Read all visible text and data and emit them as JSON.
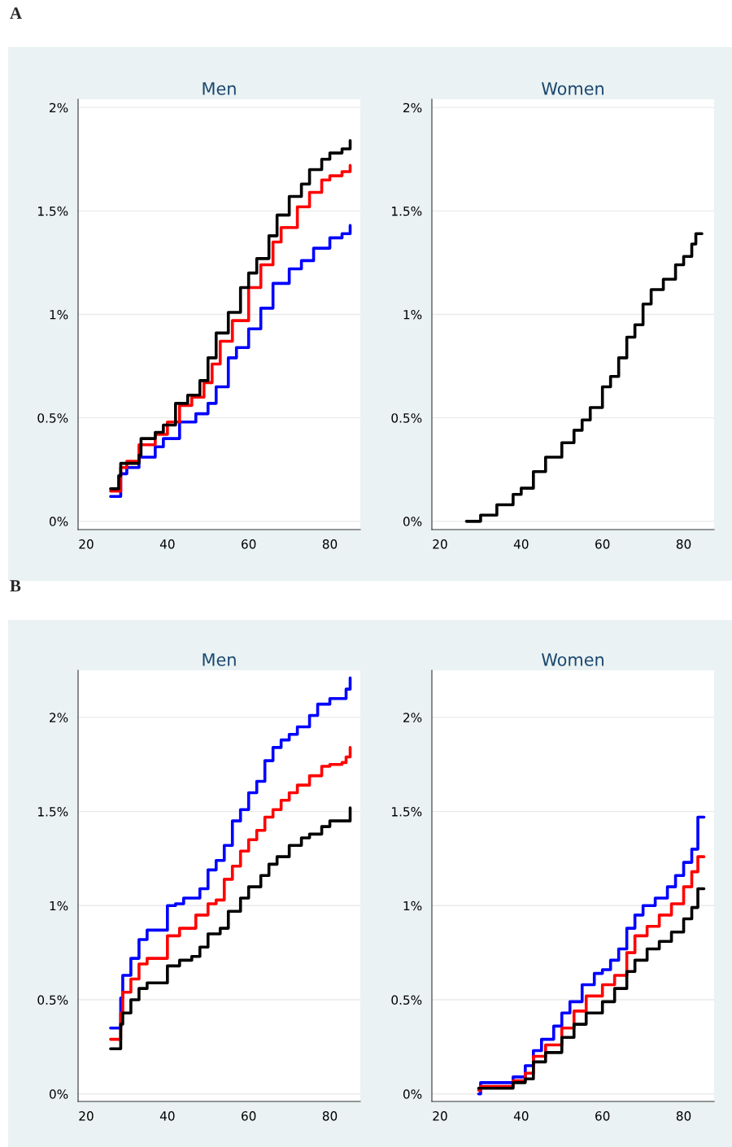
{
  "chart_data": [
    {
      "type": "step",
      "title": "Men",
      "annotations": [
        "A"
      ],
      "xlim": [
        18,
        87.5
      ],
      "ylim": [
        -0.04,
        2.04
      ],
      "xticks": [
        20,
        40,
        60,
        80
      ],
      "yticks": [
        {
          "value": 0,
          "label": "0%"
        },
        {
          "value": 0.5,
          "label": "0.5%"
        },
        {
          "value": 1,
          "label": "1%"
        },
        {
          "value": 1.5,
          "label": "1.5%"
        },
        {
          "value": 2,
          "label": "2%"
        }
      ],
      "grid": "y",
      "legend": false,
      "series": [
        {
          "color": "#0000ff",
          "x": [
            26,
            28,
            28.5,
            30,
            33,
            37,
            39,
            43,
            47,
            50,
            52,
            55,
            57,
            60,
            63,
            66,
            70,
            73,
            76,
            80,
            83,
            85
          ],
          "values": [
            0.12,
            0.12,
            0.23,
            0.26,
            0.31,
            0.36,
            0.4,
            0.48,
            0.52,
            0.57,
            0.65,
            0.79,
            0.84,
            0.93,
            1.03,
            1.15,
            1.22,
            1.26,
            1.32,
            1.37,
            1.39,
            1.43
          ]
        },
        {
          "color": "#ff0000",
          "x": [
            26,
            28.5,
            30,
            33,
            37,
            40,
            43,
            46,
            49,
            51,
            53,
            56,
            60,
            63,
            66,
            68,
            72,
            75,
            78,
            80,
            83,
            85
          ],
          "values": [
            0.146,
            0.26,
            0.29,
            0.37,
            0.42,
            0.48,
            0.56,
            0.6,
            0.67,
            0.76,
            0.87,
            0.97,
            1.13,
            1.24,
            1.35,
            1.42,
            1.52,
            1.59,
            1.65,
            1.67,
            1.69,
            1.72
          ]
        },
        {
          "color": "#000000",
          "x": [
            26,
            28,
            28.5,
            33,
            33.5,
            37,
            39,
            42,
            45,
            48,
            50,
            52,
            55,
            58,
            60,
            62,
            65,
            67,
            70,
            73,
            75,
            78,
            80,
            83,
            85
          ],
          "values": [
            0.157,
            0.22,
            0.28,
            0.32,
            0.4,
            0.43,
            0.465,
            0.57,
            0.61,
            0.68,
            0.79,
            0.91,
            1.01,
            1.13,
            1.2,
            1.27,
            1.38,
            1.48,
            1.57,
            1.63,
            1.7,
            1.75,
            1.78,
            1.8,
            1.84
          ]
        }
      ]
    },
    {
      "type": "step",
      "title": "Women",
      "xlim": [
        18,
        87.5
      ],
      "ylim": [
        -0.04,
        2.04
      ],
      "xticks": [
        20,
        40,
        60,
        80
      ],
      "yticks": [
        {
          "value": 0,
          "label": "0%"
        },
        {
          "value": 0.5,
          "label": "0.5%"
        },
        {
          "value": 1,
          "label": "1%"
        },
        {
          "value": 1.5,
          "label": "1.5%"
        },
        {
          "value": 2,
          "label": "2%"
        }
      ],
      "grid": "y",
      "legend": false,
      "series": [
        {
          "color": "#000000",
          "x": [
            26.5,
            29,
            30,
            33,
            34,
            37,
            38,
            40,
            43,
            46,
            50,
            53,
            55,
            57,
            60,
            62,
            64,
            66,
            68,
            70,
            72,
            75,
            78,
            80,
            82,
            83,
            84.5
          ],
          "values": [
            0,
            0,
            0.03,
            0.03,
            0.08,
            0.08,
            0.13,
            0.16,
            0.24,
            0.31,
            0.38,
            0.44,
            0.49,
            0.55,
            0.65,
            0.7,
            0.79,
            0.89,
            0.95,
            1.05,
            1.12,
            1.17,
            1.24,
            1.28,
            1.34,
            1.39,
            1.39
          ]
        }
      ]
    },
    {
      "type": "step",
      "title": "Men",
      "annotations": [
        "B"
      ],
      "xlim": [
        18,
        87.5
      ],
      "ylim": [
        -0.04,
        2.25
      ],
      "xticks": [
        20,
        40,
        60,
        80
      ],
      "yticks": [
        {
          "value": 0,
          "label": "0%"
        },
        {
          "value": 0.5,
          "label": "0.5%"
        },
        {
          "value": 1,
          "label": "1%"
        },
        {
          "value": 1.5,
          "label": "1.5%"
        },
        {
          "value": 2,
          "label": "2%"
        }
      ],
      "grid": "y",
      "legend": false,
      "series": [
        {
          "color": "#0000ff",
          "x": [
            26,
            28,
            28.5,
            29,
            31,
            33,
            35,
            39,
            40,
            42,
            44,
            47,
            48,
            50,
            52,
            54,
            56,
            58,
            60,
            62,
            64,
            66,
            68,
            70,
            72,
            75,
            77,
            80,
            83,
            84,
            85
          ],
          "values": [
            0.35,
            0.35,
            0.51,
            0.63,
            0.72,
            0.82,
            0.87,
            0.87,
            1.0,
            1.01,
            1.04,
            1.04,
            1.09,
            1.19,
            1.24,
            1.32,
            1.45,
            1.51,
            1.6,
            1.66,
            1.77,
            1.84,
            1.88,
            1.91,
            1.95,
            2.01,
            2.07,
            2.1,
            2.1,
            2.15,
            2.21
          ]
        },
        {
          "color": "#ff0000",
          "x": [
            26,
            28,
            28.5,
            29,
            31,
            33,
            35,
            39,
            40,
            43,
            46,
            47,
            50,
            52,
            54,
            56,
            58,
            60,
            62,
            64,
            66,
            68,
            70,
            72,
            75,
            78,
            80,
            83,
            84,
            85
          ],
          "values": [
            0.29,
            0.29,
            0.43,
            0.54,
            0.61,
            0.69,
            0.72,
            0.72,
            0.84,
            0.88,
            0.88,
            0.95,
            1.01,
            1.03,
            1.14,
            1.21,
            1.29,
            1.35,
            1.4,
            1.47,
            1.51,
            1.56,
            1.6,
            1.64,
            1.69,
            1.74,
            1.75,
            1.76,
            1.79,
            1.84
          ]
        },
        {
          "color": "#000000",
          "x": [
            26,
            28,
            28.5,
            29,
            31,
            33,
            35,
            39,
            40,
            43,
            46,
            48,
            50,
            53,
            55,
            58,
            60,
            63,
            65,
            67,
            70,
            73,
            75,
            78,
            80,
            84,
            85
          ],
          "values": [
            0.24,
            0.24,
            0.37,
            0.43,
            0.5,
            0.56,
            0.59,
            0.59,
            0.68,
            0.71,
            0.73,
            0.78,
            0.85,
            0.88,
            0.97,
            1.04,
            1.1,
            1.16,
            1.22,
            1.26,
            1.32,
            1.36,
            1.38,
            1.42,
            1.45,
            1.45,
            1.52
          ]
        }
      ]
    },
    {
      "type": "step",
      "title": "Women",
      "xlim": [
        18,
        87.5
      ],
      "ylim": [
        -0.04,
        2.25
      ],
      "xticks": [
        20,
        40,
        60,
        80
      ],
      "yticks": [
        {
          "value": 0,
          "label": "0%"
        },
        {
          "value": 0.5,
          "label": "0.5%"
        },
        {
          "value": 1,
          "label": "1%"
        },
        {
          "value": 1.5,
          "label": "1.5%"
        },
        {
          "value": 2,
          "label": "2%"
        }
      ],
      "grid": "y",
      "legend": false,
      "series": [
        {
          "color": "#0000ff",
          "x": [
            29.5,
            30,
            37,
            38,
            40,
            41,
            43,
            45,
            48,
            50,
            52,
            55,
            58,
            60,
            62,
            64,
            66,
            68,
            70,
            73,
            76,
            78,
            80,
            82,
            83.5,
            85
          ],
          "values": [
            0,
            0.06,
            0.06,
            0.09,
            0.09,
            0.15,
            0.23,
            0.29,
            0.36,
            0.43,
            0.49,
            0.58,
            0.64,
            0.66,
            0.71,
            0.77,
            0.88,
            0.95,
            1.0,
            1.04,
            1.1,
            1.16,
            1.23,
            1.3,
            1.47,
            1.47
          ]
        },
        {
          "color": "#ff0000",
          "x": [
            29.5,
            30,
            37,
            38,
            41,
            43,
            46,
            50,
            53,
            56,
            60,
            63,
            66,
            68,
            71,
            74,
            77,
            80,
            82,
            83.5,
            85
          ],
          "values": [
            0.02,
            0.04,
            0.04,
            0.07,
            0.11,
            0.2,
            0.26,
            0.35,
            0.44,
            0.52,
            0.58,
            0.63,
            0.75,
            0.84,
            0.89,
            0.95,
            1.01,
            1.1,
            1.18,
            1.26,
            1.26
          ]
        },
        {
          "color": "#000000",
          "x": [
            29.5,
            37,
            38,
            41,
            43,
            46,
            50,
            53,
            56,
            60,
            63,
            66,
            68,
            71,
            74,
            77,
            80,
            82,
            83.5,
            85
          ],
          "values": [
            0.03,
            0.03,
            0.06,
            0.08,
            0.17,
            0.22,
            0.3,
            0.37,
            0.43,
            0.49,
            0.56,
            0.65,
            0.71,
            0.77,
            0.81,
            0.86,
            0.93,
            0.99,
            1.09,
            1.09
          ]
        }
      ]
    }
  ]
}
